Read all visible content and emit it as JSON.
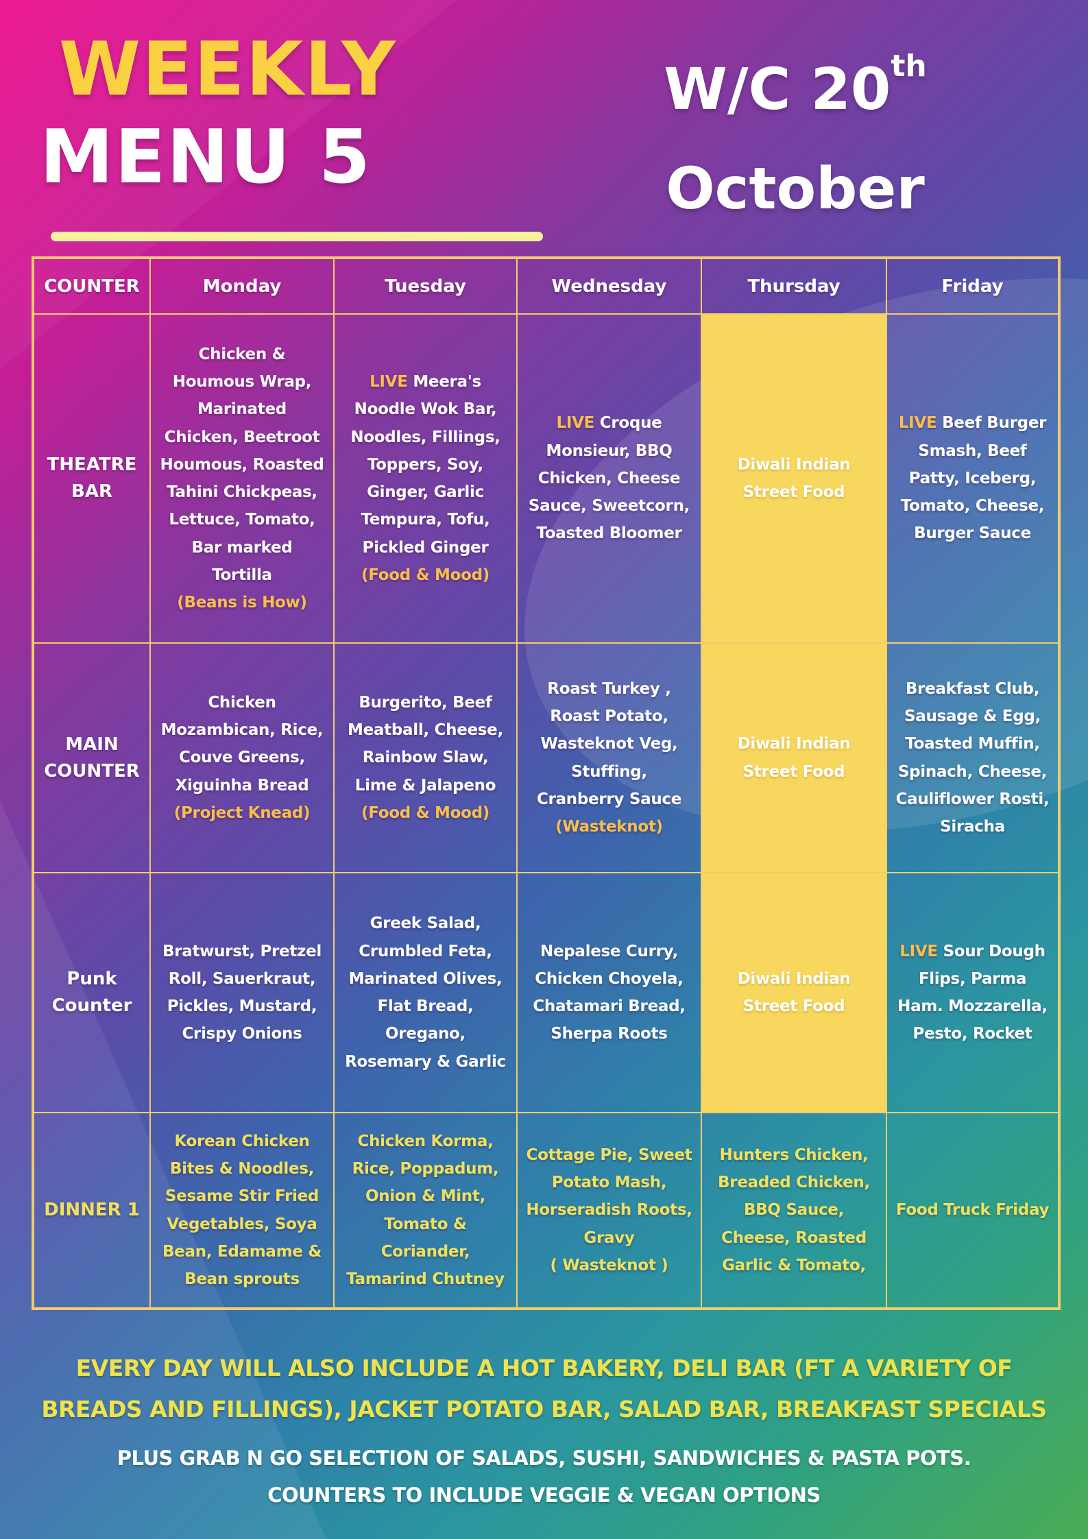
{
  "header": {
    "title_line1": "WEEKLY",
    "title_line2": "MENU 5",
    "week_prefix": "W/C 20",
    "week_superscript": "th",
    "week_month": "October"
  },
  "table": {
    "columns": [
      "COUNTER",
      "Monday",
      "Tuesday",
      "Wednesday",
      "Thursday",
      "Friday"
    ],
    "rows": [
      {
        "id": "theatre-bar",
        "counter": "THEATRE BAR",
        "counter_style": "white",
        "text_style": "white",
        "cells": [
          {
            "day": "Monday",
            "highlight": false,
            "segments": [
              {
                "text": "Chicken & Houmous Wrap, Marinated Chicken, Beetroot Houmous, Roasted Tahini Chickpeas, Lettuce, Tomato, Bar marked Tortilla",
                "accent": false,
                "block": false
              },
              {
                "text": "(Beans is How)",
                "accent": true,
                "block": true
              }
            ]
          },
          {
            "day": "Tuesday",
            "highlight": false,
            "segments": [
              {
                "text": "LIVE",
                "accent": true,
                "block": false
              },
              {
                "text": " Meera's Noodle Wok Bar, Noodles, Fillings, Toppers, Soy, Ginger, Garlic Tempura, Tofu, Pickled Ginger",
                "accent": false,
                "block": false
              },
              {
                "text": "(Food & Mood)",
                "accent": true,
                "block": true
              }
            ]
          },
          {
            "day": "Wednesday",
            "highlight": false,
            "segments": [
              {
                "text": "LIVE",
                "accent": true,
                "block": false
              },
              {
                "text": " Croque Monsieur, BBQ Chicken, Cheese Sauce, Sweetcorn, Toasted Bloomer",
                "accent": false,
                "block": false
              }
            ]
          },
          {
            "day": "Thursday",
            "highlight": true,
            "segments": [
              {
                "text": "Diwali Indian Street Food",
                "accent": false,
                "block": false
              }
            ]
          },
          {
            "day": "Friday",
            "highlight": false,
            "segments": [
              {
                "text": "LIVE",
                "accent": true,
                "block": false
              },
              {
                "text": " Beef Burger Smash, Beef Patty, Iceberg, Tomato, Cheese, Burger Sauce",
                "accent": false,
                "block": false
              }
            ]
          }
        ]
      },
      {
        "id": "main-counter",
        "counter": "MAIN COUNTER",
        "counter_style": "white",
        "text_style": "white",
        "cells": [
          {
            "day": "Monday",
            "highlight": false,
            "segments": [
              {
                "text": "Chicken Mozambican, Rice, Couve Greens, Xiguinha Bread",
                "accent": false,
                "block": false
              },
              {
                "text": "(Project Knead)",
                "accent": true,
                "block": true
              }
            ]
          },
          {
            "day": "Tuesday",
            "highlight": false,
            "segments": [
              {
                "text": "Burgerito, Beef Meatball, Cheese, Rainbow Slaw, Lime & Jalapeno",
                "accent": false,
                "block": false
              },
              {
                "text": "(Food & Mood)",
                "accent": true,
                "block": true
              }
            ]
          },
          {
            "day": "Wednesday",
            "highlight": false,
            "segments": [
              {
                "text": "Roast Turkey , Roast Potato, Wasteknot Veg, Stuffing, Cranberry Sauce",
                "accent": false,
                "block": false
              },
              {
                "text": "(Wasteknot)",
                "accent": true,
                "block": true
              }
            ]
          },
          {
            "day": "Thursday",
            "highlight": true,
            "segments": [
              {
                "text": "Diwali Indian Street Food",
                "accent": false,
                "block": false
              }
            ]
          },
          {
            "day": "Friday",
            "highlight": false,
            "segments": [
              {
                "text": "Breakfast Club, Sausage & Egg, Toasted Muffin, Spinach, Cheese, Cauliflower Rosti, Siracha",
                "accent": false,
                "block": false
              }
            ]
          }
        ]
      },
      {
        "id": "punk-counter",
        "counter": "Punk Counter",
        "counter_style": "white",
        "text_style": "white",
        "cells": [
          {
            "day": "Monday",
            "highlight": false,
            "segments": [
              {
                "text": "Bratwurst, Pretzel Roll, Sauerkraut, Pickles, Mustard, Crispy Onions",
                "accent": false,
                "block": false
              }
            ]
          },
          {
            "day": "Tuesday",
            "highlight": false,
            "segments": [
              {
                "text": "Greek Salad, Crumbled Feta, Marinated Olives, Flat Bread, Oregano, Rosemary & Garlic",
                "accent": false,
                "block": false
              }
            ]
          },
          {
            "day": "Wednesday",
            "highlight": false,
            "segments": [
              {
                "text": "Nepalese Curry, Chicken Choyela, Chatamari Bread, Sherpa Roots",
                "accent": false,
                "block": false
              }
            ]
          },
          {
            "day": "Thursday",
            "highlight": true,
            "segments": [
              {
                "text": "Diwali Indian Street Food",
                "accent": false,
                "block": false
              }
            ]
          },
          {
            "day": "Friday",
            "highlight": false,
            "segments": [
              {
                "text": "LIVE",
                "accent": true,
                "block": false
              },
              {
                "text": " Sour Dough Flips, Parma Ham. Mozzarella, Pesto, Rocket",
                "accent": false,
                "block": false
              }
            ]
          }
        ]
      },
      {
        "id": "dinner-1",
        "counter": "DINNER 1",
        "counter_style": "yellow",
        "text_style": "yellow",
        "cells": [
          {
            "day": "Monday",
            "highlight": false,
            "segments": [
              {
                "text": "Korean Chicken Bites & Noodles, Sesame Stir Fried Vegetables, Soya Bean, Edamame & Bean sprouts",
                "accent": false,
                "block": false
              }
            ]
          },
          {
            "day": "Tuesday",
            "highlight": false,
            "segments": [
              {
                "text": "Chicken Korma, Rice, Poppadum, Onion & Mint, Tomato & Coriander, Tamarind Chutney",
                "accent": false,
                "block": false
              }
            ]
          },
          {
            "day": "Wednesday",
            "highlight": false,
            "segments": [
              {
                "text": "Cottage Pie, Sweet Potato Mash, Horseradish Roots, Gravy",
                "accent": false,
                "block": false
              },
              {
                "text": "( Wasteknot )",
                "accent": false,
                "block": true
              }
            ]
          },
          {
            "day": "Thursday",
            "highlight": false,
            "segments": [
              {
                "text": "Hunters Chicken, Breaded Chicken, BBQ Sauce, Cheese, Roasted Garlic & Tomato,",
                "accent": false,
                "block": false
              }
            ]
          },
          {
            "day": "Friday",
            "highlight": false,
            "segments": [
              {
                "text": "Food Truck Friday",
                "accent": false,
                "block": false
              }
            ]
          }
        ]
      }
    ]
  },
  "footer": {
    "yellow_lines": [
      "EVERY DAY WILL ALSO INCLUDE A HOT BAKERY, DELI BAR (FT A VARIETY OF",
      "BREADS AND FILLINGS), JACKET POTATO BAR, SALAD BAR, BREAKFAST SPECIALS"
    ],
    "white_lines": [
      "PLUS GRAB N GO SELECTION OF SALADS, SUSHI, SANDWICHES & PASTA POTS.",
      "COUNTERS TO INCLUDE VEGGIE & VEGAN OPTIONS"
    ]
  },
  "colors": {
    "title_yellow": "#FBD144",
    "underline_yellow": "#FAF19B",
    "accent_yellow": "#F9BE4B",
    "dinner_yellow": "#F0E15C",
    "highlight_cell": "#F8D75F",
    "table_border": "#F2CC6A",
    "footer_yellow": "#F0E24D",
    "bg_magenta": "#ED0E8C",
    "bg_purple": "#83399F",
    "bg_blue": "#3F63AC",
    "bg_teal": "#2B95A0",
    "bg_green": "#4BAC55"
  }
}
